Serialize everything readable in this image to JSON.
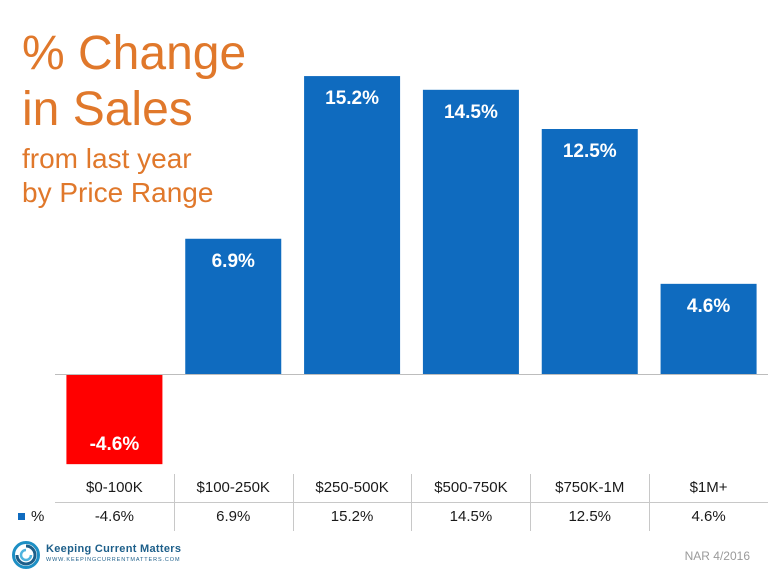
{
  "title": {
    "line1": "% Change",
    "line2": "in Sales",
    "line3": "from last year",
    "line4": "by Price Range"
  },
  "colors": {
    "title": "#e0782b",
    "positive": "#0f6bbf",
    "negative": "#ff0000",
    "label": "#ffffff"
  },
  "chart_data": {
    "type": "bar",
    "title": "% Change in Sales from last year by Price Range",
    "categories": [
      "$0-100K",
      "$100-250K",
      "$250-500K",
      "$500-750K",
      "$750K-1M",
      "$1M+"
    ],
    "series": [
      {
        "name": "%",
        "values": [
          -4.6,
          6.9,
          15.2,
          14.5,
          12.5,
          4.6
        ]
      }
    ],
    "value_labels": [
      "-4.6%",
      "6.9%",
      "15.2%",
      "14.5%",
      "12.5%",
      "4.6%"
    ],
    "ylim": [
      -4.6,
      15.2
    ],
    "grid": false,
    "legend": "data-table"
  },
  "table": {
    "row_label": "%",
    "values": [
      "-4.6%",
      "6.9%",
      "15.2%",
      "14.5%",
      "12.5%",
      "4.6%"
    ]
  },
  "footer": {
    "logo_name": "Keeping Current Matters",
    "logo_url": "WWW.KEEPINGCURRENTMATTERS.COM",
    "source": "NAR 4/2016"
  }
}
